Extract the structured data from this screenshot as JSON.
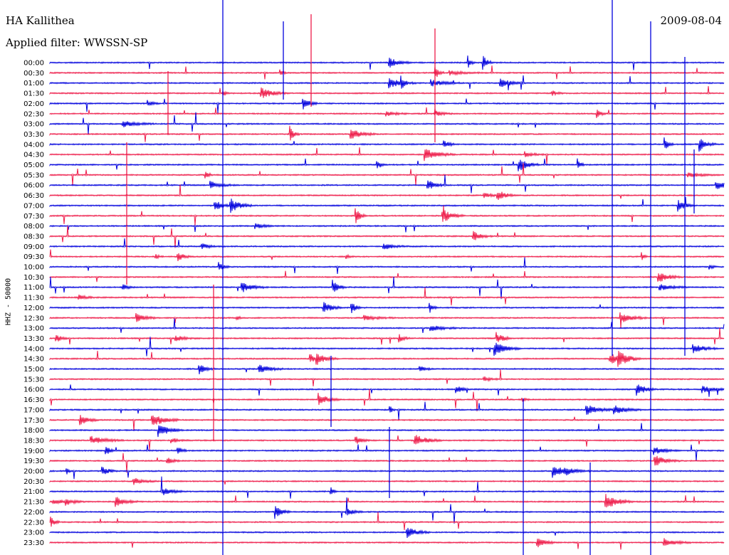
{
  "header": {
    "station": "HA Kallithea",
    "date": "2009-08-04",
    "filter": "Applied filter: WWSSN-SP"
  },
  "chart_data": {
    "type": "line",
    "kind": "helicorder",
    "ylabel": "HHZ - 50000",
    "row_labels": [
      "00:00",
      "00:30",
      "01:00",
      "01:30",
      "02:00",
      "02:30",
      "03:00",
      "03:30",
      "04:00",
      "04:30",
      "05:00",
      "05:30",
      "06:00",
      "06:30",
      "07:00",
      "07:30",
      "08:00",
      "08:30",
      "09:00",
      "09:30",
      "10:00",
      "10:30",
      "11:00",
      "11:30",
      "12:00",
      "12:30",
      "13:00",
      "13:30",
      "14:00",
      "14:30",
      "15:00",
      "15:30",
      "16:00",
      "16:30",
      "17:00",
      "17:30",
      "18:00",
      "18:30",
      "19:00",
      "19:30",
      "20:00",
      "20:30",
      "21:00",
      "21:30",
      "22:00",
      "22:30",
      "23:00",
      "23:30"
    ],
    "row_minutes": 30,
    "trace_colors": [
      "#0000dd",
      "#ee1c4a"
    ],
    "grid": false
  }
}
